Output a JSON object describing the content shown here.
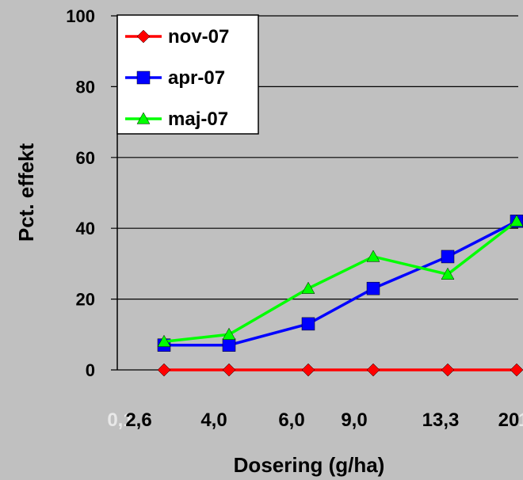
{
  "chart_data": {
    "type": "line",
    "title": "",
    "xlabel": "Dosering (g/ha)",
    "ylabel": "Pct. effekt",
    "ylim": [
      0,
      100
    ],
    "yticks": [
      "0",
      "20",
      "40",
      "60",
      "80",
      "100"
    ],
    "ghost_labels": [
      "0,1",
      "1"
    ],
    "categories": [
      "2,6",
      "4,0",
      "6,0",
      "9,0",
      "13,3",
      "20"
    ],
    "grid": "horizontal",
    "legend": "top-left",
    "series": [
      {
        "name": "nov-07",
        "color": "#ff0000",
        "marker": "diamond",
        "values": [
          0,
          0,
          0,
          0,
          0,
          0
        ]
      },
      {
        "name": "apr-07",
        "color": "#0000ff",
        "marker": "square",
        "values": [
          7,
          7,
          13,
          23,
          32,
          42
        ]
      },
      {
        "name": "maj-07",
        "color": "#00ff00",
        "marker": "triangle",
        "values": [
          8,
          10,
          23,
          32,
          27,
          42
        ]
      }
    ]
  }
}
